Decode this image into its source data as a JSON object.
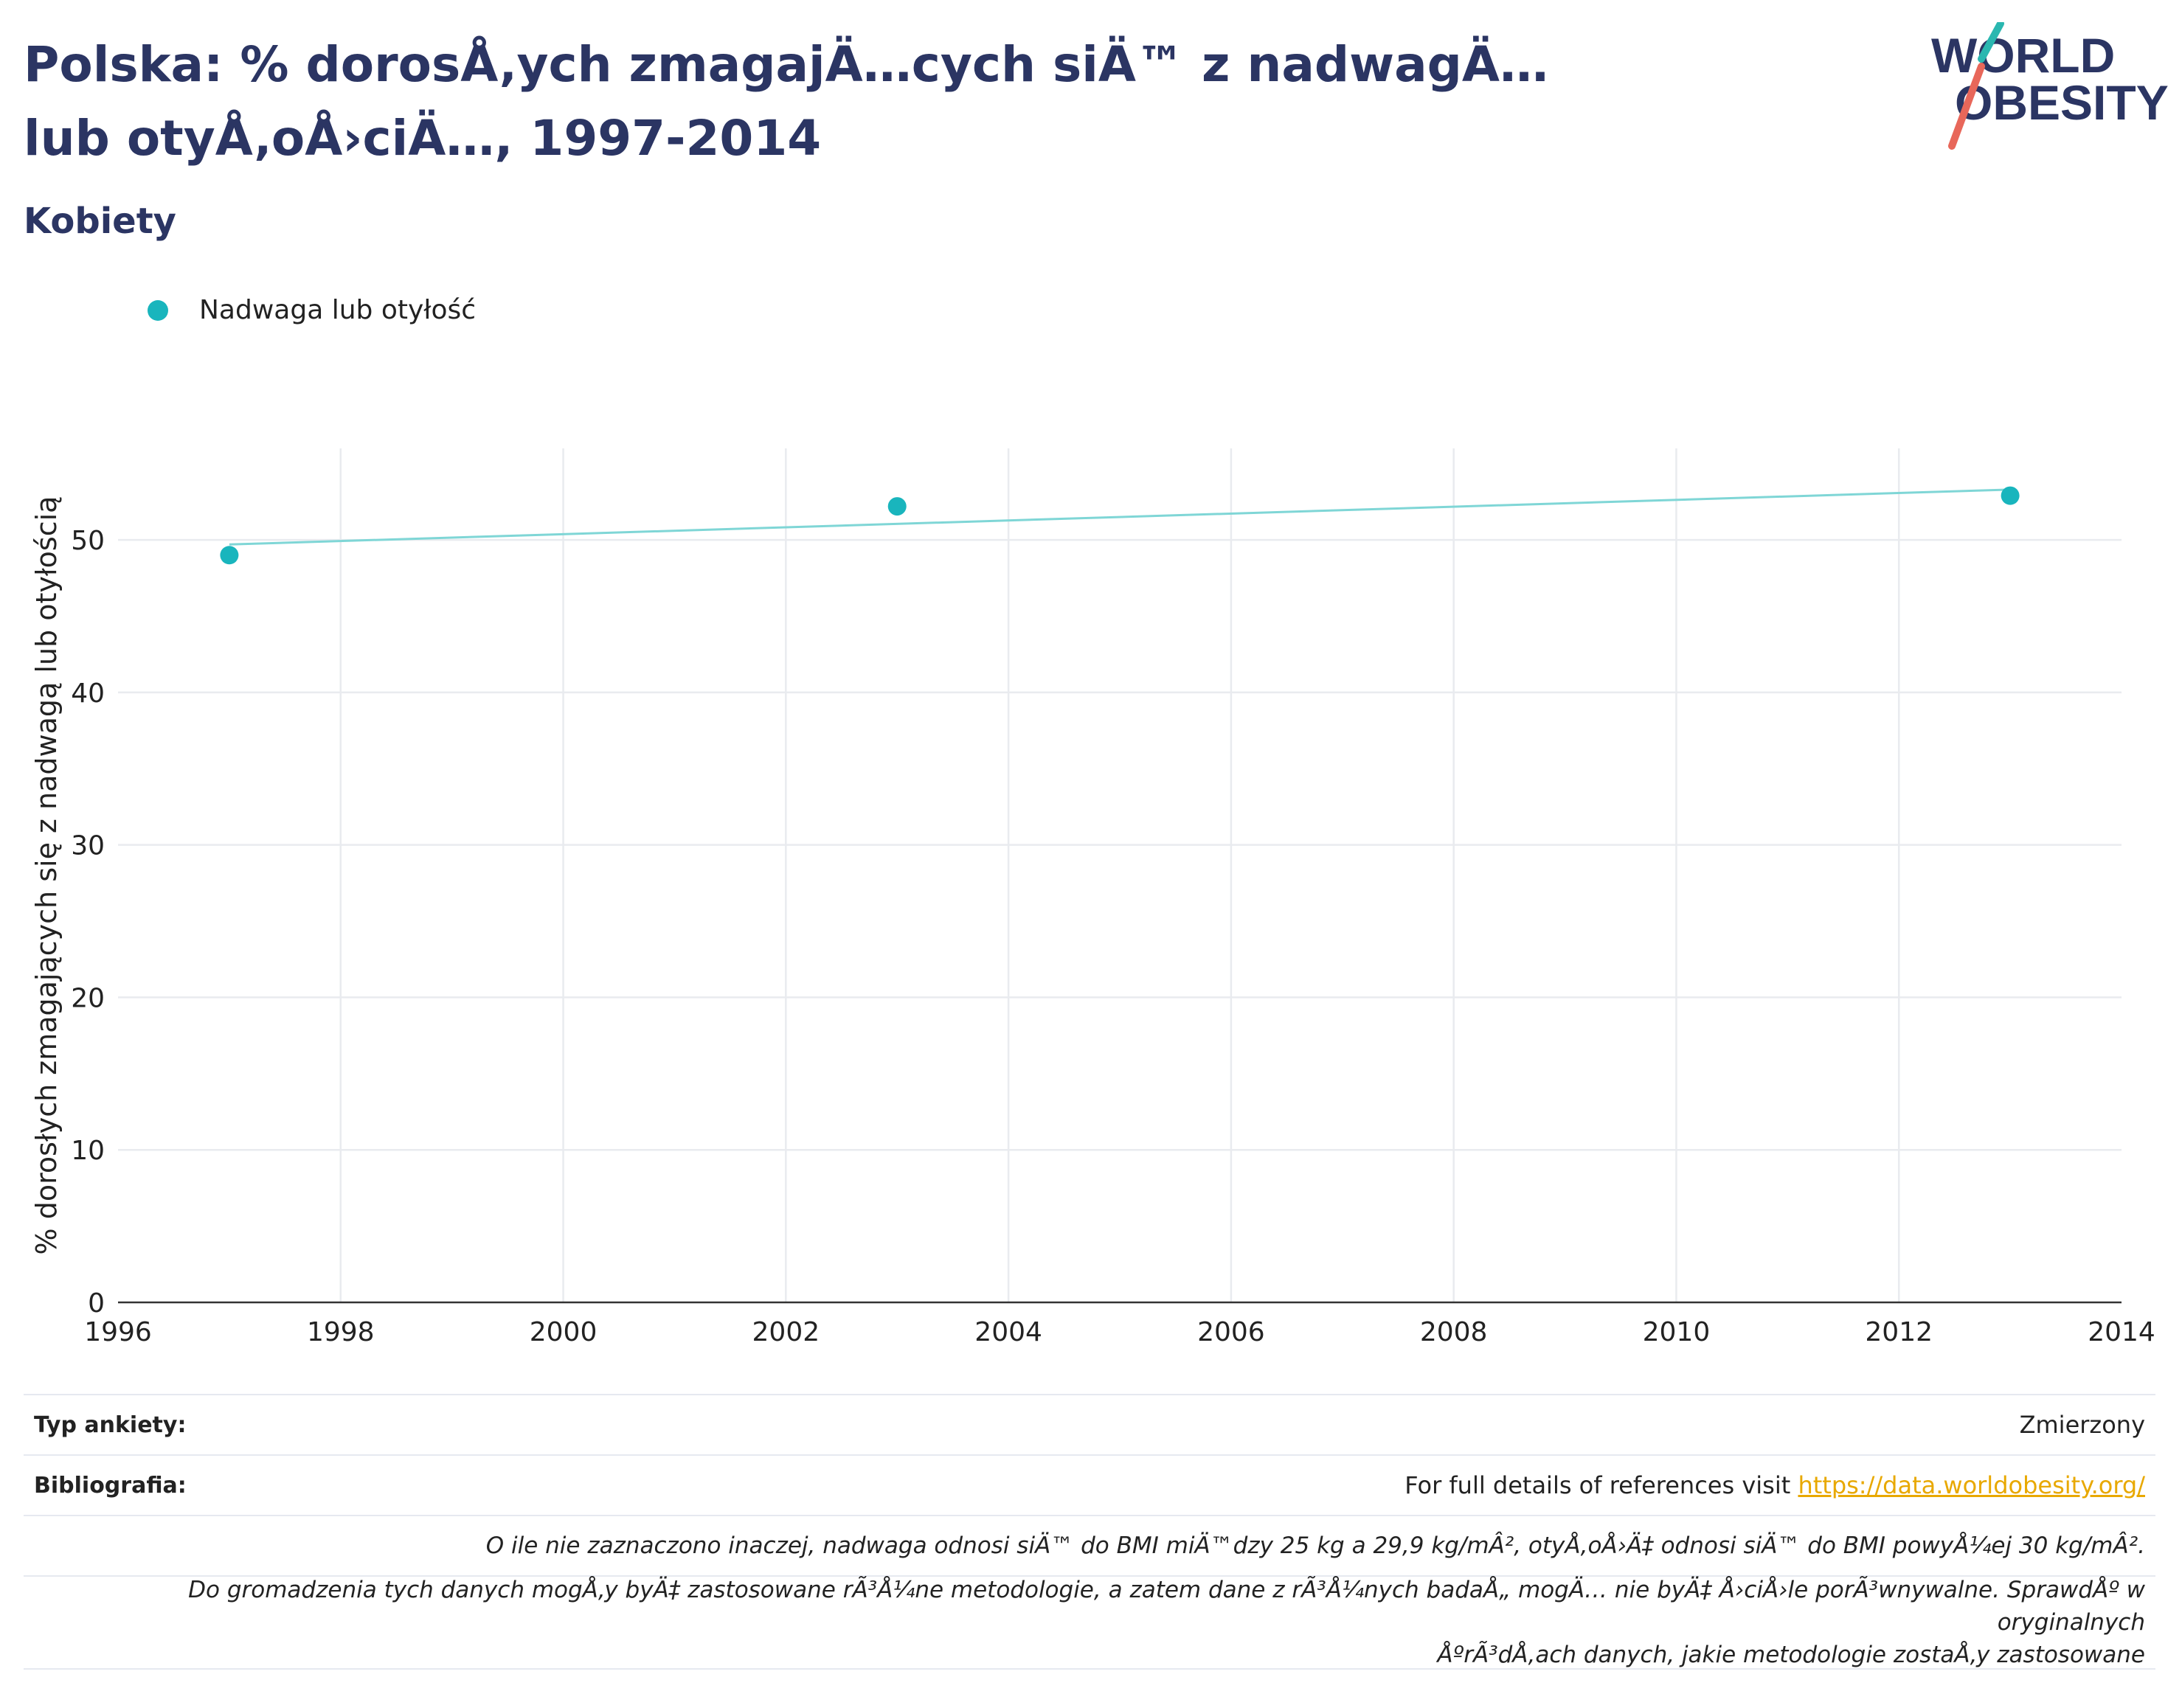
{
  "header": {
    "title": "Polska: % dorosÅ‚ych zmagajÄ…cych siÄ™ z nadwagÄ… lub otyÅ‚oÅ›ciÄ…, 1997-2014",
    "subtitle": "Kobiety",
    "logo_line1": "WORLD",
    "logo_line2": "OBESITY",
    "logo_icon": "slash-mark-icon"
  },
  "legend": {
    "label": "Nadwaga lub otyłość"
  },
  "colors": {
    "title": "#2b3563",
    "series_marker": "#19b5bd",
    "trend_line": "#7fd6d6",
    "grid": "#e9ebef",
    "axis": "#333333",
    "link": "#e8a800",
    "logo_slash_teal": "#2ab7b0",
    "logo_slash_red": "#e8675a"
  },
  "chart_data": {
    "type": "scatter",
    "title": "Polska: % dorosÅ‚ych zmagajÄ…cych siÄ™ z nadwagÄ… lub otyÅ‚oÅ›ciÄ…, 1997-2014",
    "subtitle": "Kobiety",
    "xlabel": "",
    "ylabel": "% dorosłych zmagających się z nadwagą lub otyłością",
    "xlim": [
      1996,
      2014
    ],
    "ylim": [
      0,
      56
    ],
    "x_ticks": [
      1996,
      1998,
      2000,
      2002,
      2004,
      2006,
      2008,
      2010,
      2012,
      2014
    ],
    "y_ticks": [
      0,
      10,
      20,
      30,
      40,
      50
    ],
    "grid": true,
    "legend_position": "top-left",
    "series": [
      {
        "name": "Nadwaga lub otyłość",
        "x": [
          1997,
          2003,
          2013
        ],
        "y": [
          49.0,
          52.2,
          52.9
        ]
      }
    ],
    "trend_line": {
      "x": [
        1997,
        2013
      ],
      "y": [
        49.7,
        53.3
      ]
    }
  },
  "footer": {
    "survey_type_label": "Typ ankiety:",
    "survey_type_value": "Zmierzony",
    "bibliography_label": "Bibliografia:",
    "bibliography_text": "For full details of references visit ",
    "bibliography_link": "https://data.worldobesity.org/",
    "note1": "O ile nie zaznaczono inaczej, nadwaga odnosi siÄ™ do BMI miÄ™dzy 25 kg a 29,9 kg/mÂ², otyÅ‚oÅ›Ä‡ odnosi siÄ™ do BMI powyÅ¼ej 30 kg/mÂ².",
    "note2_line1": "Do gromadzenia tych danych mogÅ‚y byÄ‡ zastosowane rÃ³Å¼ne metodologie, a zatem dane z rÃ³Å¼nych badaÅ„ mogÄ… nie byÄ‡ Å›ciÅ›le porÃ³wnywalne. SprawdÅº w oryginalnych",
    "note2_line2": "ÅºrÃ³dÅ‚ach danych, jakie metodologie zostaÅ‚y zastosowane"
  }
}
